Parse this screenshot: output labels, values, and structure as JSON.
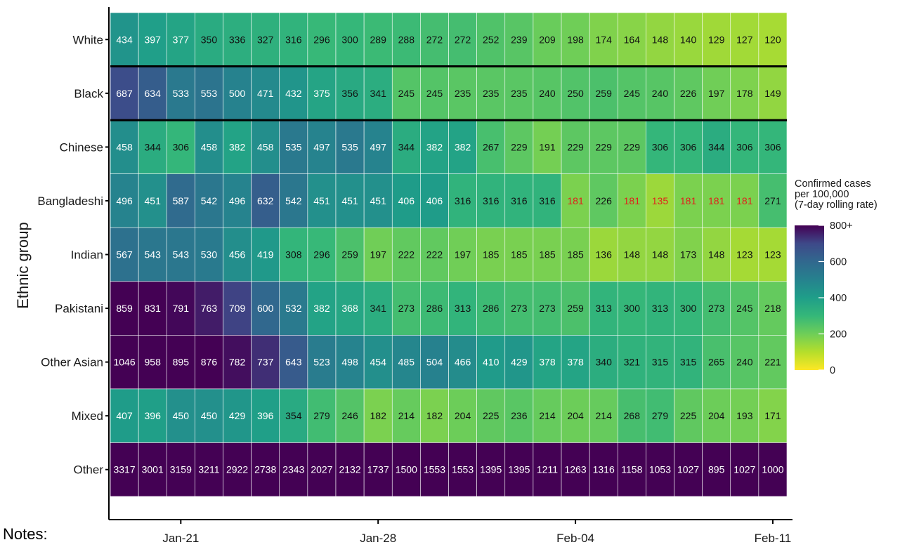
{
  "chart_data": {
    "type": "heatmap",
    "ylabel": "Ethnic group",
    "xlabel": "",
    "x_ticks": [
      {
        "label": "Jan-21",
        "col": 2.5
      },
      {
        "label": "Jan-28",
        "col": 9.5
      },
      {
        "label": "Feb-04",
        "col": 16.5
      },
      {
        "label": "Feb-11",
        "col": 23.5
      }
    ],
    "rows": [
      "White",
      "Black",
      "Chinese",
      "Bangladeshi",
      "Indian",
      "Pakistani",
      "Other Asian",
      "Mixed",
      "Other"
    ],
    "values": [
      [
        434,
        397,
        377,
        350,
        336,
        327,
        316,
        296,
        300,
        289,
        288,
        272,
        272,
        252,
        239,
        209,
        198,
        174,
        164,
        148,
        140,
        129,
        127,
        120
      ],
      [
        687,
        634,
        533,
        553,
        500,
        471,
        432,
        375,
        356,
        341,
        245,
        245,
        235,
        235,
        235,
        240,
        250,
        259,
        245,
        240,
        226,
        197,
        178,
        149
      ],
      [
        458,
        344,
        306,
        458,
        382,
        458,
        535,
        497,
        535,
        497,
        344,
        382,
        382,
        267,
        229,
        191,
        229,
        229,
        229,
        306,
        306,
        344,
        306,
        306
      ],
      [
        496,
        451,
        587,
        542,
        496,
        632,
        542,
        451,
        451,
        451,
        406,
        406,
        316,
        316,
        316,
        316,
        181,
        226,
        181,
        135,
        181,
        181,
        181,
        271
      ],
      [
        567,
        543,
        543,
        530,
        456,
        419,
        308,
        296,
        259,
        197,
        222,
        222,
        197,
        185,
        185,
        185,
        185,
        136,
        148,
        148,
        173,
        148,
        123,
        123
      ],
      [
        859,
        831,
        791,
        763,
        709,
        600,
        532,
        382,
        368,
        341,
        273,
        286,
        313,
        286,
        273,
        273,
        259,
        313,
        300,
        313,
        300,
        273,
        245,
        218
      ],
      [
        1046,
        958,
        895,
        876,
        782,
        737,
        643,
        523,
        498,
        454,
        485,
        504,
        466,
        410,
        429,
        378,
        378,
        340,
        321,
        315,
        315,
        265,
        240,
        221
      ],
      [
        407,
        396,
        450,
        450,
        429,
        396,
        354,
        279,
        246,
        182,
        214,
        182,
        204,
        225,
        236,
        214,
        204,
        214,
        268,
        279,
        225,
        204,
        193,
        171
      ],
      [
        3317,
        3001,
        3159,
        3211,
        2922,
        2738,
        2343,
        2027,
        2132,
        1737,
        1500,
        1553,
        1553,
        1395,
        1395,
        1211,
        1263,
        1316,
        1158,
        1053,
        1027,
        895,
        1027,
        1000
      ]
    ],
    "red_label_cells": [
      [
        3,
        16
      ],
      [
        3,
        18
      ],
      [
        3,
        19
      ],
      [
        3,
        20
      ],
      [
        3,
        21
      ],
      [
        3,
        22
      ]
    ],
    "separator_lines_after_rows": [
      0,
      1
    ],
    "colorscale": "viridis (reversed)",
    "color_range": [
      0,
      800
    ],
    "legend": {
      "title_lines": [
        "Confirmed cases",
        " per 100,000",
        " (7-day rolling rate)"
      ],
      "ticks": [
        "800+",
        "600",
        "400",
        "200",
        "0"
      ],
      "tick_values": [
        800,
        600,
        400,
        200,
        0
      ],
      "placement": "right"
    }
  },
  "notes_label": "Notes:"
}
